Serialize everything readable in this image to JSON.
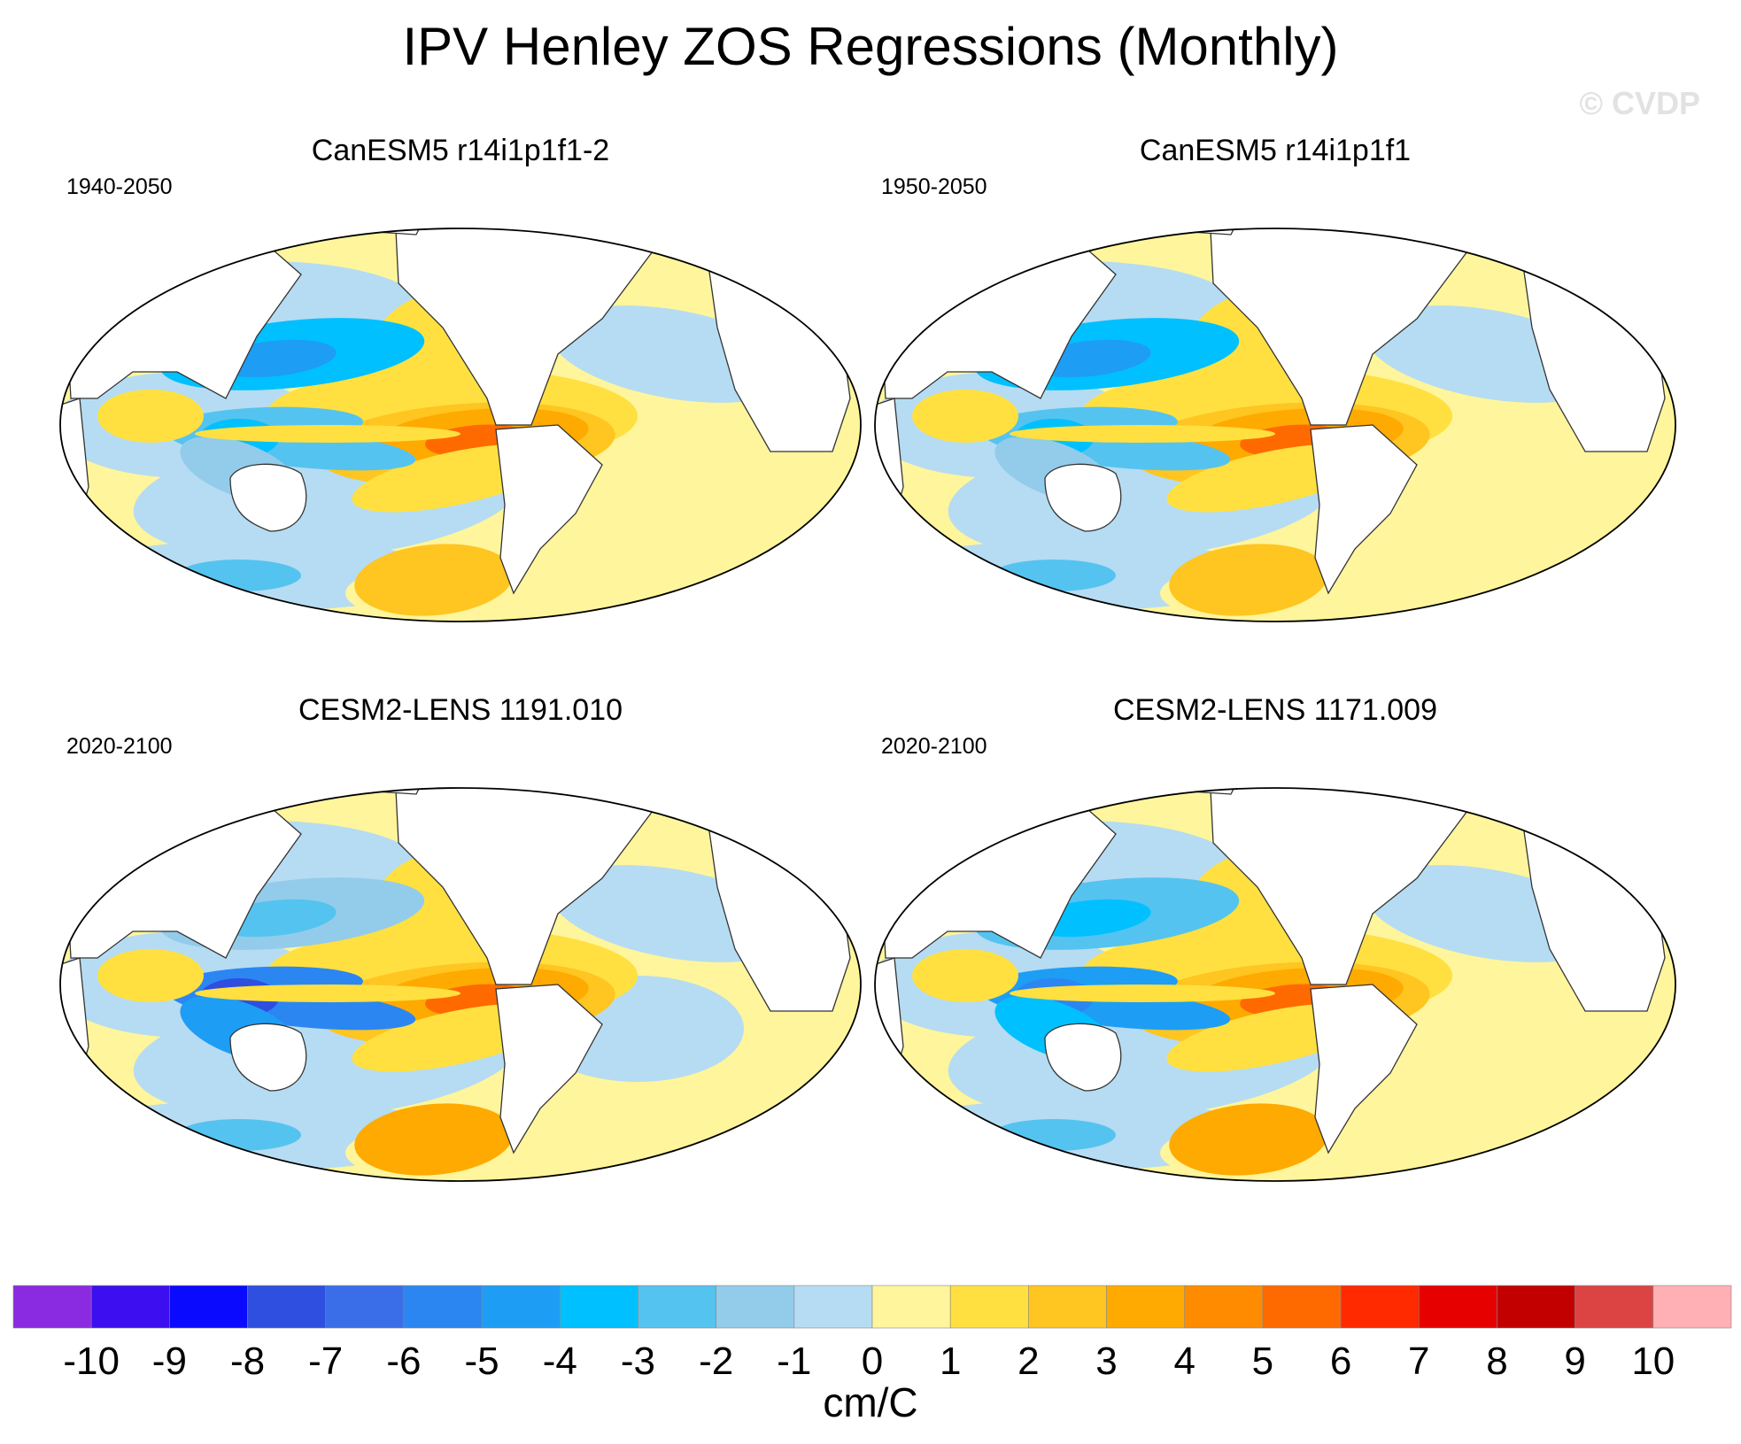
{
  "title": "IPV Henley ZOS Regressions (Monthly)",
  "watermark": "© CVDP",
  "chart_data": [
    {
      "type": "heatmap",
      "title": "CanESM5 r14i1p1f1-2",
      "period": "1940-2050",
      "projection": "Robinson, Pacific-centered",
      "variable": "ZOS regression on IPV (Henley)",
      "peak_values": {
        "eastern_equatorial_pacific": 6,
        "north_pacific_kuroshio": -4,
        "western_tropical_pacific": -3
      },
      "colors": {
        "land": "#ffffff",
        "outline": "#000000"
      }
    },
    {
      "type": "heatmap",
      "title": "CanESM5 r14i1p1f1",
      "period": "1950-2050",
      "projection": "Robinson, Pacific-centered",
      "variable": "ZOS regression on IPV (Henley)",
      "peak_values": {
        "eastern_equatorial_pacific": 6,
        "north_pacific_kuroshio": -4,
        "western_tropical_pacific": -3
      },
      "colors": {
        "land": "#ffffff",
        "outline": "#000000"
      }
    },
    {
      "type": "heatmap",
      "title": "CESM2-LENS 1191.010",
      "period": "2020-2100",
      "projection": "Robinson, Pacific-centered",
      "variable": "ZOS regression on IPV (Henley)",
      "peak_values": {
        "eastern_equatorial_pacific": 6,
        "north_pacific_kuroshio": -2,
        "western_tropical_pacific": -8
      },
      "colors": {
        "land": "#ffffff",
        "outline": "#000000"
      }
    },
    {
      "type": "heatmap",
      "title": "CESM2-LENS 1171.009",
      "period": "2020-2100",
      "projection": "Robinson, Pacific-centered",
      "variable": "ZOS regression on IPV (Henley)",
      "peak_values": {
        "eastern_equatorial_pacific": 6,
        "north_pacific_kuroshio": -3,
        "western_tropical_pacific": -6
      },
      "colors": {
        "land": "#ffffff",
        "outline": "#000000"
      }
    }
  ],
  "colorbar": {
    "label": "cm/C",
    "tick_labels": [
      "-10",
      "-9",
      "-8",
      "-7",
      "-6",
      "-5",
      "-4",
      "-3",
      "-2",
      "-1",
      "0",
      "1",
      "2",
      "3",
      "4",
      "5",
      "6",
      "7",
      "8",
      "9",
      "10"
    ],
    "colors": [
      "#8a2be2",
      "#3d0ff0",
      "#0a0aff",
      "#2e4fe0",
      "#3a6ee8",
      "#2b86f2",
      "#1e9df5",
      "#00c0ff",
      "#55c3f0",
      "#93ccea",
      "#b5dcf2",
      "#fff59c",
      "#ffe040",
      "#ffc520",
      "#ffaa00",
      "#ff8c00",
      "#ff6a00",
      "#ff2a00",
      "#e60000",
      "#c30000",
      "#dc4444",
      "#ffb0b5"
    ]
  }
}
